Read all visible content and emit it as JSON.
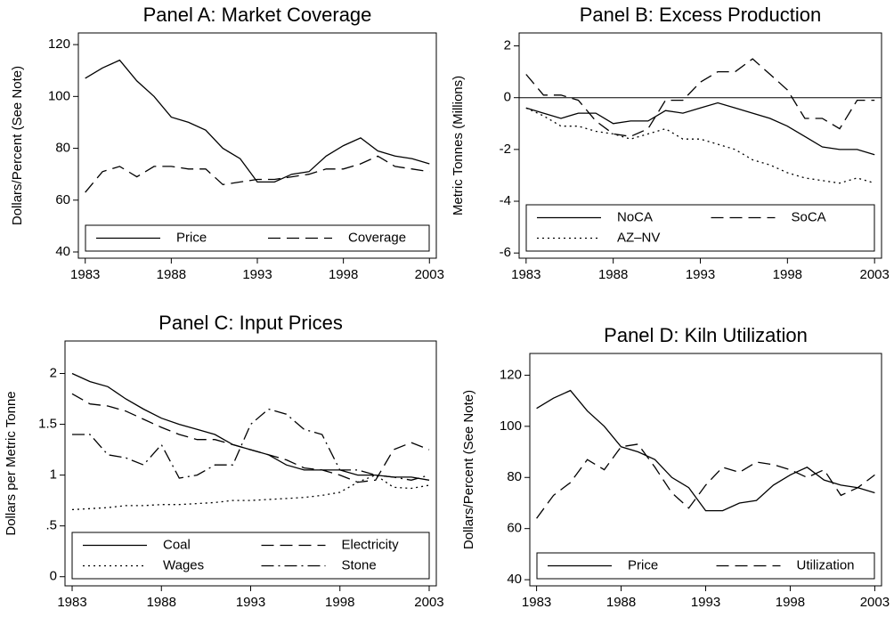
{
  "chart_data": [
    {
      "type": "line",
      "title": "Panel A: Market Coverage",
      "ylabel": "Dollars/Percent (See Note)",
      "x": [
        1983,
        1984,
        1985,
        1986,
        1987,
        1988,
        1989,
        1990,
        1991,
        1992,
        1993,
        1994,
        1995,
        1996,
        1997,
        1998,
        1999,
        2000,
        2001,
        2002,
        2003
      ],
      "series": [
        {
          "name": "Price",
          "color": "#000000",
          "dash": "solid",
          "values": [
            107,
            111,
            114,
            106,
            100,
            92,
            90,
            87,
            80,
            76,
            67,
            67,
            70,
            71,
            77,
            81,
            84,
            79,
            77,
            76,
            74
          ]
        },
        {
          "name": "Coverage",
          "color": "#000000",
          "dash": "dashed",
          "values": [
            63,
            71,
            73,
            69,
            73,
            73,
            72,
            72,
            66,
            67,
            68,
            68,
            69,
            70,
            72,
            72,
            74,
            77,
            73,
            72,
            71
          ]
        }
      ],
      "xlim": [
        1982.6,
        2003.4
      ],
      "xticks": [
        1983,
        1988,
        1993,
        1998,
        2003
      ],
      "ylim": [
        37.6,
        124.5
      ],
      "yticks": [
        40,
        60,
        80,
        100,
        120
      ],
      "legend": "bottom"
    },
    {
      "type": "line",
      "title": "Panel B: Excess Production",
      "ylabel": "Metric Tonnes (Millions)",
      "x": [
        1983,
        1984,
        1985,
        1986,
        1987,
        1988,
        1989,
        1990,
        1991,
        1992,
        1993,
        1994,
        1995,
        1996,
        1997,
        1998,
        1999,
        2000,
        2001,
        2002,
        2003
      ],
      "series": [
        {
          "name": "NoCA",
          "color": "#000000",
          "dash": "solid",
          "values": [
            -0.4,
            -0.6,
            -0.8,
            -0.6,
            -0.6,
            -1.0,
            -0.9,
            -0.9,
            -0.5,
            -0.6,
            -0.4,
            -0.2,
            -0.4,
            -0.6,
            -0.8,
            -1.1,
            -1.5,
            -1.9,
            -2.0,
            -2.0,
            -2.2
          ]
        },
        {
          "name": "SoCA",
          "color": "#000000",
          "dash": "dashed",
          "values": [
            0.9,
            0.1,
            0.1,
            -0.1,
            -0.9,
            -1.4,
            -1.5,
            -1.2,
            -0.1,
            -0.1,
            0.6,
            1.0,
            1.0,
            1.5,
            0.9,
            0.3,
            -0.8,
            -0.8,
            -1.2,
            -0.1,
            -0.1
          ]
        },
        {
          "name": "AZ–NV",
          "color": "#000000",
          "dash": "dotted",
          "values": [
            -0.4,
            -0.7,
            -1.1,
            -1.1,
            -1.3,
            -1.4,
            -1.6,
            -1.4,
            -1.2,
            -1.6,
            -1.6,
            -1.8,
            -2.0,
            -2.4,
            -2.6,
            -2.9,
            -3.1,
            -3.2,
            -3.3,
            -3.1,
            -3.3
          ]
        }
      ],
      "xlim": [
        1982.6,
        2003.4
      ],
      "xticks": [
        1983,
        1988,
        1993,
        1998,
        2003
      ],
      "ylim": [
        -6.2,
        2.5
      ],
      "yticks": [
        -6,
        -4,
        -2,
        0,
        2
      ],
      "reference_line": 0,
      "legend": "bottom"
    },
    {
      "type": "line",
      "title": "Panel C: Input Prices",
      "ylabel": "Dollars per Metric Tonne",
      "x": [
        1983,
        1984,
        1985,
        1986,
        1987,
        1988,
        1989,
        1990,
        1991,
        1992,
        1993,
        1994,
        1995,
        1996,
        1997,
        1998,
        1999,
        2000,
        2001,
        2002,
        2003
      ],
      "series": [
        {
          "name": "Coal",
          "color": "#000000",
          "dash": "solid",
          "values": [
            2.0,
            1.92,
            1.87,
            1.75,
            1.65,
            1.56,
            1.5,
            1.45,
            1.4,
            1.3,
            1.25,
            1.2,
            1.1,
            1.05,
            1.05,
            1.05,
            1.0,
            1.0,
            0.98,
            0.98,
            0.95
          ]
        },
        {
          "name": "Electricity",
          "color": "#000000",
          "dash": "dashed",
          "values": [
            1.8,
            1.7,
            1.68,
            1.63,
            1.55,
            1.47,
            1.4,
            1.35,
            1.35,
            1.3,
            1.25,
            1.2,
            1.15,
            1.07,
            1.05,
            1.0,
            0.93,
            0.95,
            1.25,
            1.32,
            1.25
          ]
        },
        {
          "name": "Wages",
          "color": "#000000",
          "dash": "dotted",
          "values": [
            0.66,
            0.67,
            0.68,
            0.7,
            0.7,
            0.71,
            0.71,
            0.72,
            0.73,
            0.75,
            0.75,
            0.76,
            0.77,
            0.78,
            0.8,
            0.83,
            0.93,
            1.0,
            0.88,
            0.87,
            0.9
          ]
        },
        {
          "name": "Stone",
          "color": "#000000",
          "dash": "dashdot",
          "values": [
            1.4,
            1.4,
            1.2,
            1.17,
            1.1,
            1.3,
            0.97,
            1.0,
            1.1,
            1.1,
            1.5,
            1.65,
            1.6,
            1.45,
            1.4,
            1.05,
            1.05,
            1.0,
            0.98,
            0.95,
            1.0
          ]
        }
      ],
      "xlim": [
        1982.6,
        2003.4
      ],
      "xticks": [
        1983,
        1988,
        1993,
        1998,
        2003
      ],
      "ylim": [
        -0.09,
        2.32
      ],
      "yticks": [
        0,
        {
          "value": 0.5,
          "label": ".5"
        },
        1,
        1.5,
        2
      ],
      "legend": "bottom"
    },
    {
      "type": "line",
      "title": "Panel D: Kiln Utilization",
      "ylabel": "Dollars/Percent (See Note)",
      "x": [
        1983,
        1984,
        1985,
        1986,
        1987,
        1988,
        1989,
        1990,
        1991,
        1992,
        1993,
        1994,
        1995,
        1996,
        1997,
        1998,
        1999,
        2000,
        2001,
        2002,
        2003
      ],
      "series": [
        {
          "name": "Price",
          "color": "#000000",
          "dash": "solid",
          "values": [
            107,
            111,
            114,
            106,
            100,
            92,
            90,
            87,
            80,
            76,
            67,
            67,
            70,
            71,
            77,
            81,
            84,
            79,
            77,
            76,
            74
          ]
        },
        {
          "name": "Utilization",
          "color": "#000000",
          "dash": "dashed",
          "values": [
            64,
            73,
            78,
            87,
            83,
            92,
            93,
            84,
            74,
            68,
            77,
            84,
            82,
            86,
            85,
            83,
            80,
            83,
            73,
            76,
            81
          ]
        }
      ],
      "xlim": [
        1982.6,
        2003.4
      ],
      "xticks": [
        1983,
        1988,
        1993,
        1998,
        2003
      ],
      "ylim": [
        37.6,
        128.5
      ],
      "yticks": [
        40,
        60,
        80,
        100,
        120
      ],
      "legend": "bottom"
    }
  ]
}
